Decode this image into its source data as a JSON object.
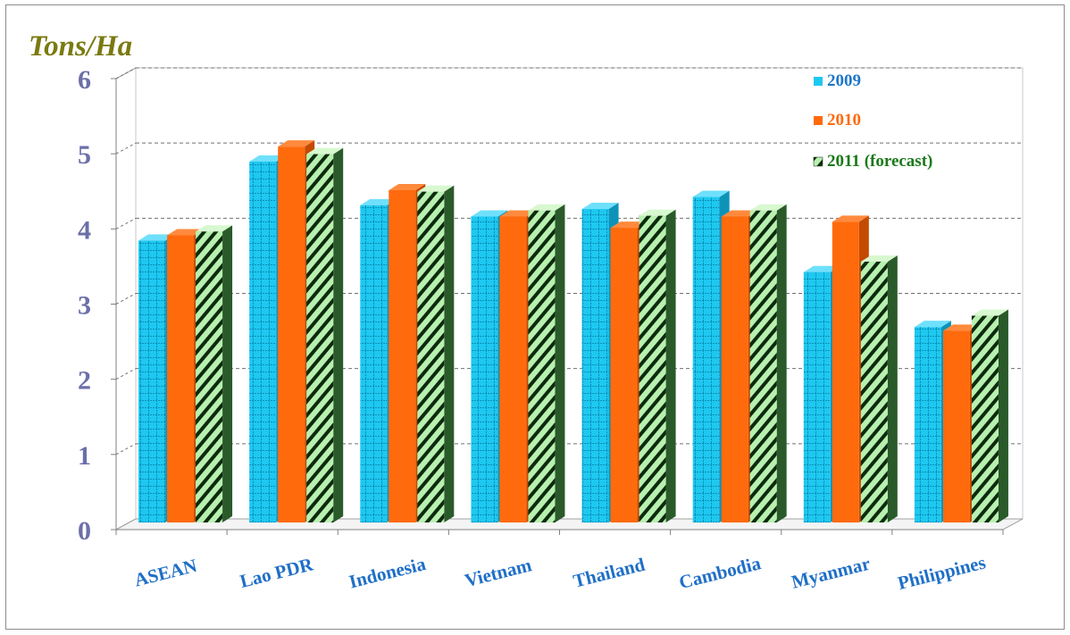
{
  "chart_data": {
    "type": "bar",
    "ylabel": "Tons/Ha",
    "ylim": [
      0,
      6
    ],
    "yticks": [
      "0",
      "1",
      "2",
      "3",
      "4",
      "5",
      "6"
    ],
    "categories": [
      "ASEAN",
      "Lao PDR",
      "Indonesia",
      "Vietnam",
      "Thailand",
      "Cambodia",
      "Myanmar",
      "Philippines"
    ],
    "series": [
      {
        "name": "2009",
        "values": [
          3.75,
          4.8,
          4.22,
          4.07,
          4.17,
          4.33,
          3.33,
          2.6
        ],
        "color": "#1ec8f0",
        "legend_color": "#1f77c9"
      },
      {
        "name": "2010",
        "values": [
          3.82,
          5.0,
          4.42,
          4.07,
          3.92,
          4.07,
          4.0,
          2.55
        ],
        "color": "#ff6a0d",
        "legend_color": "#ff6a0d"
      },
      {
        "name": "2011 (forecast)",
        "values": [
          3.87,
          4.9,
          4.4,
          4.15,
          4.08,
          4.15,
          3.47,
          2.75
        ],
        "color": "#b8f0b0",
        "legend_color": "#1a7a1a"
      }
    ],
    "grid": true,
    "legend_position": "top-right"
  },
  "colors": {
    "axis_tick": "#6b6fa8",
    "axis_title": "#7a7a10",
    "category_label": "#1f6fc7"
  }
}
